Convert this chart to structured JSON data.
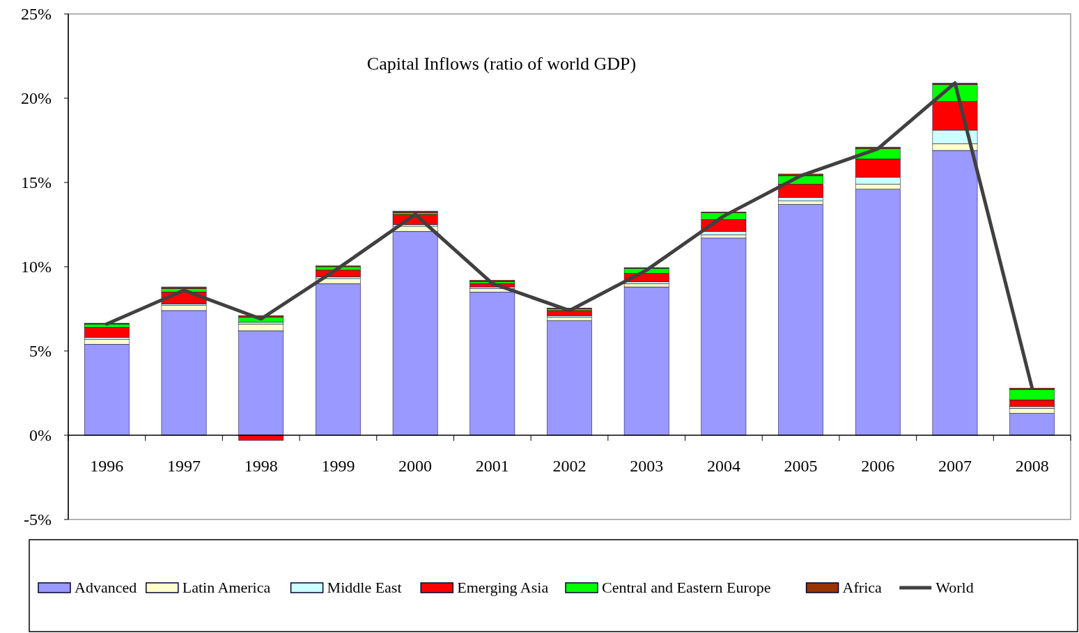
{
  "chart_data": {
    "type": "bar",
    "title": "Capital Inflows (ratio of world GDP)",
    "stacked": true,
    "legend": "bottom",
    "grid": false,
    "categories": [
      "1996",
      "1997",
      "1998",
      "1999",
      "2000",
      "2001",
      "2002",
      "2003",
      "2004",
      "2005",
      "2006",
      "2007",
      "2008"
    ],
    "ylim": [
      -5,
      25
    ],
    "yticks": [
      {
        "value": -5,
        "label": "-5%"
      },
      {
        "value": 0,
        "label": "0%"
      },
      {
        "value": 5,
        "label": "5%"
      },
      {
        "value": 10,
        "label": "10%"
      },
      {
        "value": 15,
        "label": "15%"
      },
      {
        "value": 20,
        "label": "20%"
      },
      {
        "value": 25,
        "label": "25%"
      }
    ],
    "series": [
      {
        "name": "Advanced",
        "color": "#9999ff",
        "values": [
          5.4,
          7.4,
          6.2,
          9.0,
          12.1,
          8.5,
          6.8,
          8.8,
          11.7,
          13.7,
          14.6,
          16.9,
          1.3
        ]
      },
      {
        "name": "Latin America",
        "color": "#ffffcc",
        "values": [
          0.3,
          0.3,
          0.4,
          0.3,
          0.3,
          0.2,
          0.2,
          0.2,
          0.2,
          0.2,
          0.3,
          0.4,
          0.3
        ]
      },
      {
        "name": "Middle East",
        "color": "#ccffff",
        "values": [
          0.1,
          0.1,
          0.1,
          0.1,
          0.1,
          0.1,
          0.1,
          0.1,
          0.2,
          0.2,
          0.4,
          0.8,
          0.1
        ]
      },
      {
        "name": "Emerging Asia",
        "color": "#ff0000",
        "values": [
          0.6,
          0.7,
          -0.3,
          0.4,
          0.6,
          0.2,
          0.3,
          0.5,
          0.7,
          0.8,
          1.1,
          1.7,
          0.4
        ]
      },
      {
        "name": "Central and Eastern Europe",
        "color": "#00ff00",
        "values": [
          0.2,
          0.2,
          0.3,
          0.2,
          0.1,
          0.1,
          0.1,
          0.3,
          0.4,
          0.5,
          0.6,
          1.0,
          0.6
        ]
      },
      {
        "name": "Africa",
        "color": "#993300",
        "values": [
          0.05,
          0.1,
          0.1,
          0.05,
          0.1,
          0.1,
          0.05,
          0.05,
          0.05,
          0.1,
          0.1,
          0.1,
          0.1
        ]
      },
      {
        "name": "World",
        "type": "line",
        "color": "#404040",
        "values": [
          6.6,
          8.6,
          6.9,
          9.9,
          13.1,
          9.0,
          7.4,
          9.8,
          13.0,
          15.4,
          17.0,
          20.9,
          2.8
        ]
      }
    ]
  }
}
